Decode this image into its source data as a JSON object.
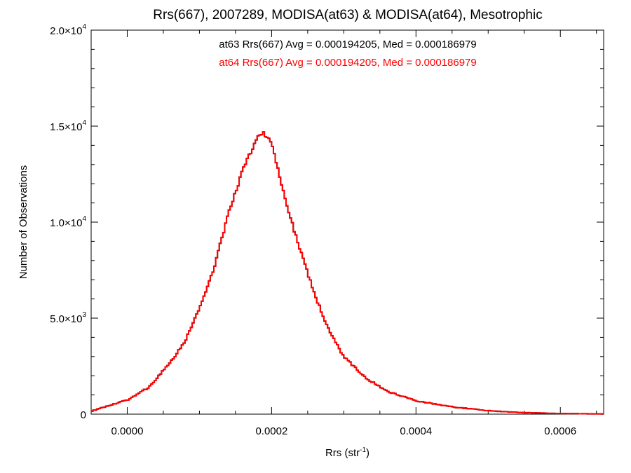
{
  "chart_data": {
    "type": "histogram",
    "title": "Rrs(667), 2007289, MODISA(at63) & MODISA(at64), Mesotrophic",
    "xlabel": {
      "main": "Rrs (str",
      "sup": "-1",
      "tail": ")"
    },
    "ylabel": "Number of Observations",
    "xlim": [
      -5e-05,
      0.00066
    ],
    "ylim": [
      0,
      20000
    ],
    "x_ticks": [
      {
        "value": 0.0,
        "label": "0.0000"
      },
      {
        "value": 0.0002,
        "label": "0.0002"
      },
      {
        "value": 0.0004,
        "label": "0.0004"
      },
      {
        "value": 0.0006,
        "label": "0.0006"
      }
    ],
    "x_minor_step": 5e-05,
    "y_ticks": [
      {
        "value": 0,
        "mant": "0",
        "exp": ""
      },
      {
        "value": 5000,
        "mant": "5.0×10",
        "exp": "3"
      },
      {
        "value": 10000,
        "mant": "1.0×10",
        "exp": "4"
      },
      {
        "value": 15000,
        "mant": "1.5×10",
        "exp": "4"
      },
      {
        "value": 20000,
        "mant": "2.0×10",
        "exp": "4"
      }
    ],
    "y_minor_step": 1000,
    "annotations": [
      {
        "text": "at63 Rrs(667) Avg = 0.000194205, Med = 0.000186979",
        "color": "#000000"
      },
      {
        "text": "at64 Rrs(667) Avg = 0.000194205, Med = 0.000186979",
        "color": "#ff0000"
      }
    ],
    "series": [
      {
        "name": "at63",
        "color": "#000000",
        "bin_width": 2.5e-06,
        "profile": {
          "peak_x": 0.000188,
          "peak_y": 14700,
          "left_width": 5.2e-05,
          "right_width": 7.8e-05,
          "points": [
            [
              -5e-05,
              150
            ],
            [
              -2.5e-05,
              450
            ],
            [
              0.0,
              730
            ],
            [
              3e-05,
              1400
            ],
            [
              6e-05,
              2700
            ],
            [
              8e-05,
              3800
            ],
            [
              0.0001,
              5500
            ],
            [
              0.00012,
              7600
            ],
            [
              0.00014,
              10400
            ],
            [
              0.00016,
              12700
            ],
            [
              0.00018,
              14400
            ],
            [
              0.000188,
              14700
            ],
            [
              0.0002,
              14100
            ],
            [
              0.00022,
              11000
            ],
            [
              0.00024,
              8500
            ],
            [
              0.00026,
              6200
            ],
            [
              0.00028,
              4300
            ],
            [
              0.0003,
              3000
            ],
            [
              0.00033,
              1900
            ],
            [
              0.00036,
              1200
            ],
            [
              0.0004,
              700
            ],
            [
              0.00045,
              380
            ],
            [
              0.0005,
              180
            ],
            [
              0.00055,
              80
            ],
            [
              0.0006,
              30
            ],
            [
              0.00066,
              10
            ]
          ]
        }
      },
      {
        "name": "at64",
        "color": "#ff0000",
        "bin_width": 2.5e-06,
        "profile": {
          "peak_x": 0.000188,
          "peak_y": 14700,
          "points": [
            [
              -5e-05,
              150
            ],
            [
              -2.5e-05,
              450
            ],
            [
              0.0,
              730
            ],
            [
              3e-05,
              1400
            ],
            [
              6e-05,
              2700
            ],
            [
              8e-05,
              3800
            ],
            [
              0.0001,
              5500
            ],
            [
              0.00012,
              7600
            ],
            [
              0.00014,
              10400
            ],
            [
              0.00016,
              12700
            ],
            [
              0.00018,
              14400
            ],
            [
              0.000188,
              14700
            ],
            [
              0.0002,
              14100
            ],
            [
              0.00022,
              11000
            ],
            [
              0.00024,
              8500
            ],
            [
              0.00026,
              6200
            ],
            [
              0.00028,
              4300
            ],
            [
              0.0003,
              3000
            ],
            [
              0.00033,
              1900
            ],
            [
              0.00036,
              1200
            ],
            [
              0.0004,
              700
            ],
            [
              0.00045,
              380
            ],
            [
              0.0005,
              180
            ],
            [
              0.00055,
              80
            ],
            [
              0.0006,
              30
            ],
            [
              0.00066,
              10
            ]
          ]
        }
      }
    ]
  }
}
